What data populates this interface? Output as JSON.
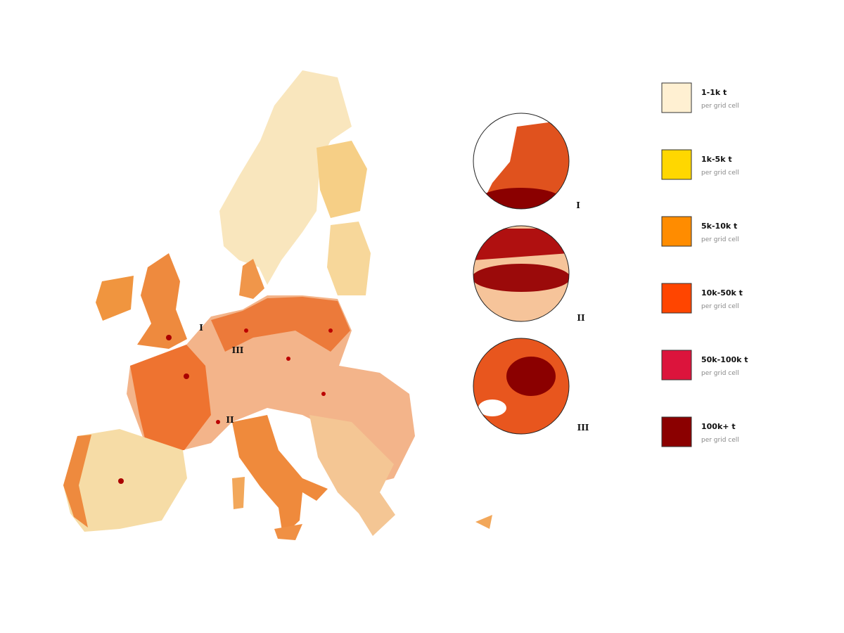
{
  "map": {
    "markers": [
      {
        "label": "I"
      },
      {
        "label": "III"
      },
      {
        "label": "II"
      }
    ]
  },
  "insets": [
    {
      "label": "I"
    },
    {
      "label": "II"
    },
    {
      "label": "III"
    }
  ],
  "legend": [
    {
      "label": "1-1k t",
      "sublabel": "per grid cell",
      "color": "#fff0d2"
    },
    {
      "label": "1k-5k t",
      "sublabel": "per grid cell",
      "color": "#ffd700"
    },
    {
      "label": "5k-10k t",
      "sublabel": "per grid cell",
      "color": "#ff8c00"
    },
    {
      "label": "10k-50k t",
      "sublabel": "per grid cell",
      "color": "#ff4500"
    },
    {
      "label": "50k-100k t",
      "sublabel": "per grid cell",
      "color": "#dc143c"
    },
    {
      "label": "100k+ t",
      "sublabel": "per grid cell",
      "color": "#8b0000"
    }
  ]
}
